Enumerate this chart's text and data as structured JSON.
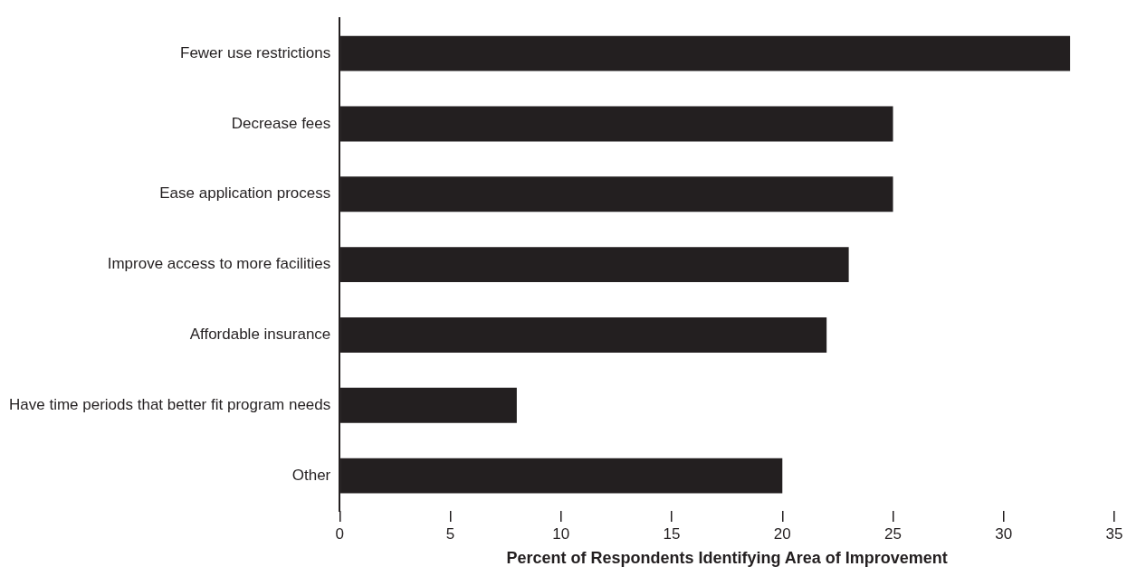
{
  "chart_data": {
    "type": "bar",
    "orientation": "horizontal",
    "xlabel": "Percent of Respondents Identifying Area of Improvement",
    "categories": [
      "Fewer use restrictions",
      "Decrease fees",
      "Ease application process",
      "Improve access to more facilities",
      "Affordable insurance",
      "Have time periods that better fit program needs",
      "Other"
    ],
    "values": [
      33,
      25,
      25,
      23,
      22,
      8,
      20
    ],
    "color": "#231f20",
    "xlim": [
      0,
      35
    ],
    "xticks": [
      0,
      5,
      10,
      15,
      20,
      25,
      30,
      35
    ],
    "grid": false,
    "legend": false
  }
}
